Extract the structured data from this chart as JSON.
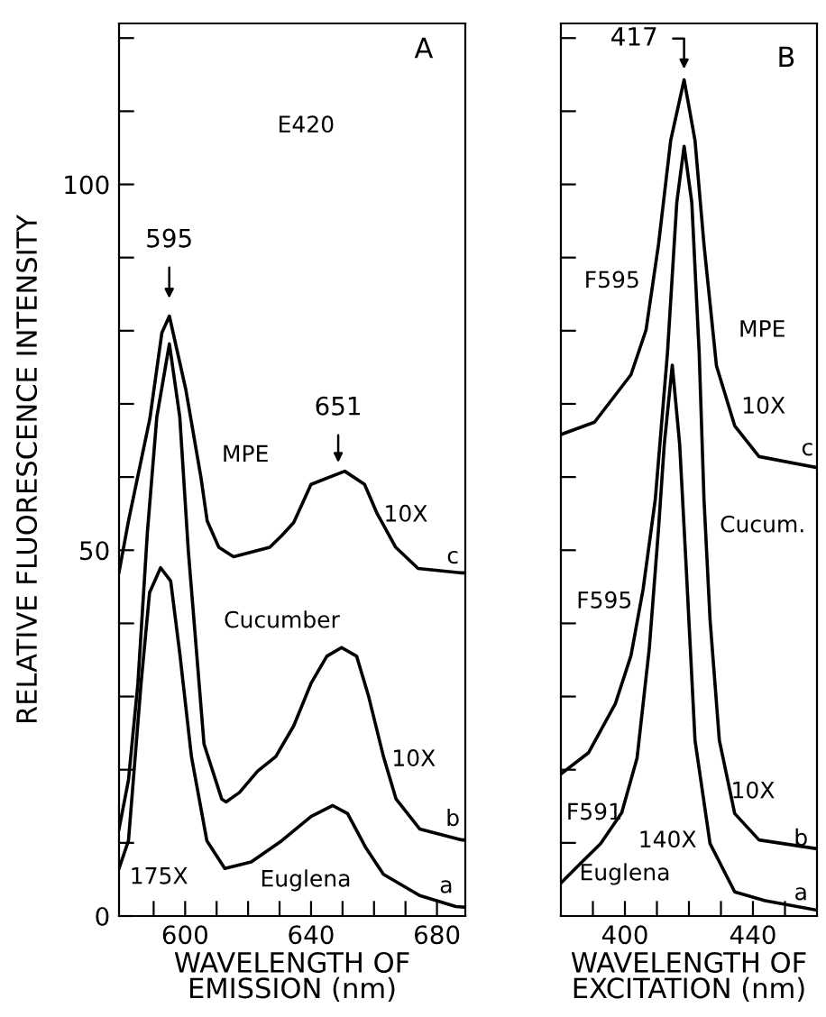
{
  "chart_data": [
    {
      "type": "line",
      "ylabel": "RELATIVE FLUORESCENCE INTENSITY",
      "xlabel": "WAVELENGTH OF\nEMISSION (nm)",
      "xlim": [
        579,
        689
      ],
      "ylim": [
        0,
        122
      ],
      "xticks": [
        {
          "value": 590,
          "label": null
        },
        600,
        {
          "value": 610,
          "label": null
        },
        {
          "value": 620,
          "label": null
        },
        {
          "value": 630,
          "label": null
        },
        640,
        {
          "value": 650,
          "label": null
        },
        {
          "value": 660,
          "label": null
        },
        {
          "value": 670,
          "label": null
        },
        680
      ],
      "yticks": [
        0,
        {
          "value": 10,
          "label": null
        },
        {
          "value": 20,
          "label": null
        },
        {
          "value": 30,
          "label": null
        },
        {
          "value": 40,
          "label": null
        },
        50,
        {
          "value": 60,
          "label": null
        },
        {
          "value": 70,
          "label": null
        },
        {
          "value": 80,
          "label": null
        },
        {
          "value": 90,
          "label": null
        },
        100,
        {
          "value": 110,
          "label": null
        },
        {
          "value": 120,
          "label": null
        }
      ],
      "grid": false,
      "marker": "none",
      "line_style": "solid",
      "series": [
        {
          "color": "#000000",
          "x": [
            579,
            582,
            588.8,
            592.6,
            595,
            600.2,
            605,
            607,
            610.7,
            615.4,
            626.9,
            630.7,
            634.5,
            640,
            650.7,
            657,
            661,
            666.9,
            674,
            687.8,
            689
          ],
          "values": [
            47,
            54,
            68,
            79.7,
            82,
            72,
            60,
            54,
            50.4,
            49.1,
            50.4,
            52,
            53.8,
            59,
            60.8,
            59,
            55,
            50.4,
            47.5,
            46.9,
            46.9
          ]
        },
        {
          "color": "#000000",
          "x": [
            579,
            582,
            585,
            588,
            591,
            595,
            598.3,
            601,
            606,
            611.6,
            613,
            617.3,
            623,
            628.8,
            634.5,
            640,
            645,
            649.7,
            654.5,
            658.3,
            663,
            667,
            674.5,
            687.8,
            689
          ],
          "values": [
            11.9,
            18.6,
            31.8,
            52.4,
            68.2,
            78.2,
            68.2,
            50,
            23.5,
            16,
            15.6,
            16.9,
            19.8,
            21.8,
            26,
            31.8,
            35.5,
            36.7,
            35.5,
            30,
            21.8,
            16,
            11.9,
            10.4,
            10.4
          ]
        },
        {
          "color": "#000000",
          "x": [
            579,
            582,
            586,
            588.7,
            592.2,
            595.4,
            598.3,
            602,
            606.9,
            612.6,
            621,
            630.7,
            640,
            646.9,
            651.6,
            657.3,
            663,
            674.5,
            686,
            689
          ],
          "values": [
            6.5,
            10.3,
            31.8,
            44.2,
            47.6,
            45.8,
            35.9,
            21.8,
            10.3,
            6.5,
            7.4,
            10.3,
            13.6,
            15.1,
            14,
            9.4,
            5.7,
            2.8,
            1.3,
            1.2
          ]
        }
      ],
      "annotations": [
        "A",
        "E420",
        "595",
        "651",
        "MPE",
        "10X",
        "c",
        "Cucumber",
        "10X",
        "b",
        "175X",
        "Euglena",
        "a"
      ]
    },
    {
      "type": "line",
      "xlabel": "WAVELENGTH OF\nEXCITATION (nm)",
      "tick_labels": "x",
      "xlim": [
        380,
        460
      ],
      "ylim": [
        0,
        122
      ],
      "xticks": [
        {
          "value": 390,
          "label": null
        },
        400,
        {
          "value": 410,
          "label": null
        },
        {
          "value": 420,
          "label": null
        },
        {
          "value": 430,
          "label": null
        },
        440,
        {
          "value": 450,
          "label": null
        }
      ],
      "yticks": [
        {
          "value": 10,
          "label": null
        },
        {
          "value": 20,
          "label": null
        },
        {
          "value": 30,
          "label": null
        },
        {
          "value": 40,
          "label": null
        },
        {
          "value": 50,
          "label": null
        },
        {
          "value": 60,
          "label": null
        },
        {
          "value": 70,
          "label": null
        },
        {
          "value": 80,
          "label": null
        },
        {
          "value": 90,
          "label": null
        },
        {
          "value": 100,
          "label": null
        },
        {
          "value": 110,
          "label": null
        },
        {
          "value": 120,
          "label": null
        }
      ],
      "grid": false,
      "marker": "none",
      "line_style": "solid",
      "series": [
        {
          "color": "#000000",
          "x": [
            380,
            390.5,
            397,
            401.9,
            406.6,
            410.5,
            414.3,
            418.5,
            421.9,
            424.7,
            428.6,
            434.3,
            441.9,
            460
          ],
          "values": [
            65.8,
            67.5,
            71.2,
            74,
            80.1,
            91.8,
            106,
            114.3,
            106,
            91.8,
            75.2,
            67,
            62.8,
            61.3
          ]
        },
        {
          "color": "#000000",
          "x": [
            380,
            388.6,
            397,
            401.9,
            405.7,
            409.5,
            413.3,
            416.2,
            418.5,
            420.9,
            423.2,
            424.7,
            426.6,
            429.5,
            434.3,
            441.9,
            460
          ],
          "values": [
            19.4,
            22.3,
            29,
            35.6,
            44.7,
            57,
            77,
            97.5,
            105.2,
            97.5,
            77,
            57,
            40.5,
            24,
            14,
            10.4,
            9.2
          ]
        },
        {
          "color": "#000000",
          "x": [
            380,
            386.6,
            392.4,
            399,
            403.8,
            407.6,
            410.5,
            412.3,
            414.8,
            417.1,
            419,
            421.9,
            426.6,
            434.3,
            443.8,
            460
          ],
          "values": [
            4.5,
            7.4,
            9.9,
            14.1,
            21.6,
            36.5,
            52.9,
            64.5,
            75.3,
            64.5,
            48.9,
            24,
            9.9,
            3.3,
            2.1,
            0.8
          ]
        }
      ],
      "annotations": [
        "B",
        "417",
        "F595",
        "MPE",
        "10X",
        "c",
        "Cucum.",
        "F595",
        "10X",
        "b",
        "F591",
        "140X",
        "Euglena",
        "a"
      ]
    }
  ]
}
